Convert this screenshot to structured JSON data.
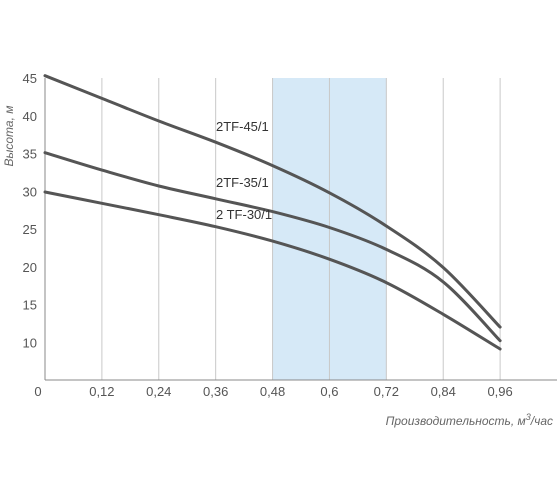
{
  "chart_data": {
    "type": "line",
    "title": "",
    "xlabel": "Производительность, м",
    "xlabel_sup": "3",
    "xlabel_suffix": "/час",
    "ylabel": "Высота, м",
    "x_ticks": [
      "0",
      "0,12",
      "0,24",
      "0,36",
      "0,48",
      "0,6",
      "0,72",
      "0,84",
      "0,96"
    ],
    "y_ticks": [
      "10",
      "15",
      "20",
      "25",
      "30",
      "35",
      "40",
      "45"
    ],
    "xlim": [
      0,
      1.08
    ],
    "ylim": [
      5,
      45
    ],
    "grid": "vertical",
    "highlight_band": {
      "from": 0.48,
      "to": 0.72,
      "color": "#d6e9f7"
    },
    "colors": {
      "line": "#555555",
      "grid": "#c8c8c8",
      "axis": "#888888"
    },
    "series": [
      {
        "name": "2TF-45/1",
        "x": [
          0,
          0.12,
          0.24,
          0.36,
          0.48,
          0.6,
          0.72,
          0.84,
          0.96
        ],
        "y": [
          45.3,
          42.3,
          39.3,
          36.5,
          33.4,
          29.8,
          25.4,
          19.9,
          12.0
        ]
      },
      {
        "name": "2TF-35/1",
        "x": [
          0,
          0.12,
          0.24,
          0.36,
          0.48,
          0.6,
          0.72,
          0.84,
          0.96
        ],
        "y": [
          35.1,
          32.8,
          30.7,
          29.0,
          27.3,
          25.2,
          22.3,
          18.0,
          10.2
        ]
      },
      {
        "name": "2 TF-30/1",
        "x": [
          0,
          0.12,
          0.24,
          0.36,
          0.48,
          0.6,
          0.72,
          0.84,
          0.96
        ],
        "y": [
          29.9,
          28.4,
          26.9,
          25.3,
          23.4,
          21.0,
          17.9,
          13.7,
          9.1
        ]
      }
    ]
  }
}
